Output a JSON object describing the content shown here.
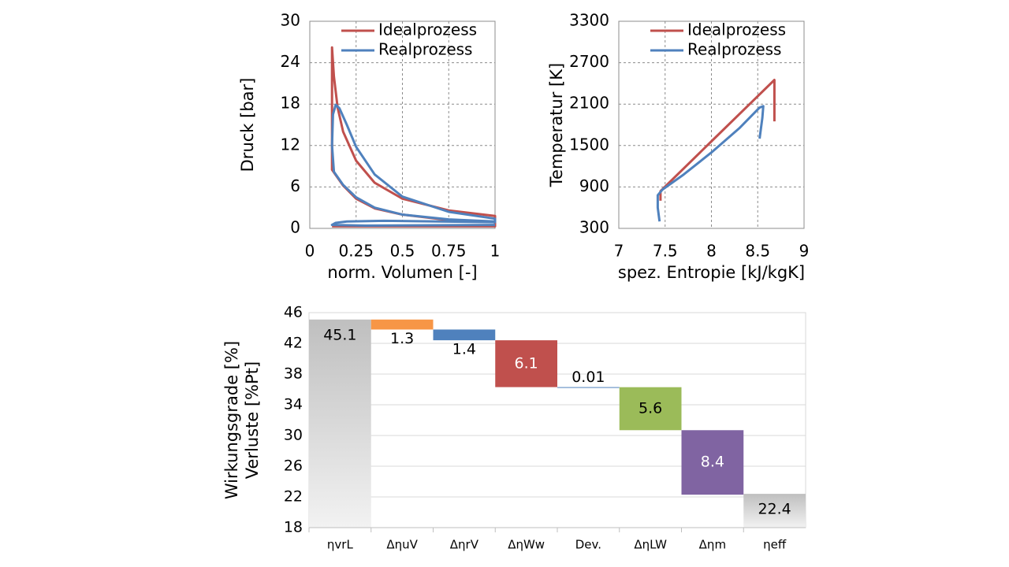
{
  "chart_data": [
    {
      "type": "line",
      "xlabel": "norm. Volumen [-]",
      "ylabel": "Druck [bar]",
      "xlim": [
        0,
        1
      ],
      "xticks": [
        0,
        0.25,
        0.5,
        0.75,
        1
      ],
      "ylim": [
        0,
        30
      ],
      "yticks": [
        0,
        6,
        12,
        18,
        24,
        30
      ],
      "grid": true,
      "legend": "upper right",
      "series": [
        {
          "name": "Idealprozess",
          "color": "#c0504d",
          "x": [
            1,
            0.75,
            0.5,
            0.35,
            0.25,
            0.18,
            0.12,
            0.12,
            0.13,
            0.15,
            0.18,
            0.25,
            0.35,
            0.5,
            0.75,
            1,
            1,
            0.5,
            0.12
          ],
          "values": [
            0.9,
            1.2,
            2.0,
            2.9,
            4.3,
            6.2,
            8.5,
            26.2,
            22,
            17.5,
            14,
            9.8,
            6.6,
            4.3,
            2.6,
            1.8,
            0.3,
            0.3,
            0.3
          ]
        },
        {
          "name": "Realprozess",
          "color": "#4f81bd",
          "x": [
            1,
            0.75,
            0.5,
            0.35,
            0.25,
            0.18,
            0.13,
            0.12,
            0.125,
            0.14,
            0.16,
            0.2,
            0.25,
            0.35,
            0.5,
            0.75,
            1,
            1,
            0.7,
            0.4,
            0.2,
            0.14,
            0.12,
            0.3,
            0.6,
            1
          ],
          "values": [
            1.0,
            1.3,
            2.0,
            3.0,
            4.5,
            6.3,
            8.2,
            12,
            16.5,
            17.9,
            17.4,
            15,
            11.8,
            7.8,
            4.6,
            2.4,
            1.4,
            0.9,
            1.0,
            1.1,
            1.0,
            0.8,
            0.5,
            0.4,
            0.45,
            0.5
          ]
        }
      ]
    },
    {
      "type": "line",
      "xlabel": "spez. Entropie [kJ/kgK]",
      "ylabel": "Temperatur [K]",
      "xlim": [
        7,
        9
      ],
      "xticks": [
        7,
        7.5,
        8,
        8.5,
        9
      ],
      "ylim": [
        300,
        3300
      ],
      "yticks": [
        300,
        900,
        1500,
        2100,
        2700,
        3300
      ],
      "grid": true,
      "legend": "upper right",
      "series": [
        {
          "name": "Idealprozess",
          "color": "#c0504d",
          "x": [
            7.45,
            7.45,
            8.0,
            8.68,
            8.68
          ],
          "values": [
            700,
            840,
            1560,
            2450,
            1850
          ]
        },
        {
          "name": "Realprozess",
          "color": "#4f81bd",
          "x": [
            7.44,
            7.42,
            7.42,
            7.47,
            7.7,
            8.0,
            8.3,
            8.52,
            8.56,
            8.55,
            8.52
          ],
          "values": [
            400,
            600,
            780,
            860,
            1080,
            1400,
            1750,
            2050,
            2070,
            1900,
            1600
          ]
        }
      ]
    },
    {
      "type": "waterfall",
      "ylabel": [
        "Wirkungsgrade [%]",
        "Verluste [%Pt]"
      ],
      "categories": [
        "ηvrL",
        "ΔηuV",
        "ΔηrV",
        "ΔηWw",
        "Dev.",
        "ΔηLW",
        "Δηm",
        "ηeff"
      ],
      "values": [
        45.1,
        1.3,
        1.4,
        6.1,
        0.01,
        5.6,
        8.4,
        22.4
      ],
      "measure": [
        "absolute",
        "decrease",
        "decrease",
        "decrease",
        "decrease",
        "decrease",
        "decrease",
        "absolute"
      ],
      "colors": [
        "#bfbfbf",
        "#f79646",
        "#4f81bd",
        "#c0504d",
        "#4f81bd",
        "#9bbb59",
        "#8064a2",
        "#bfbfbf"
      ],
      "ylim": [
        18,
        46
      ],
      "yticks": [
        18,
        22,
        26,
        30,
        34,
        38,
        42,
        46
      ],
      "grid": true
    }
  ]
}
